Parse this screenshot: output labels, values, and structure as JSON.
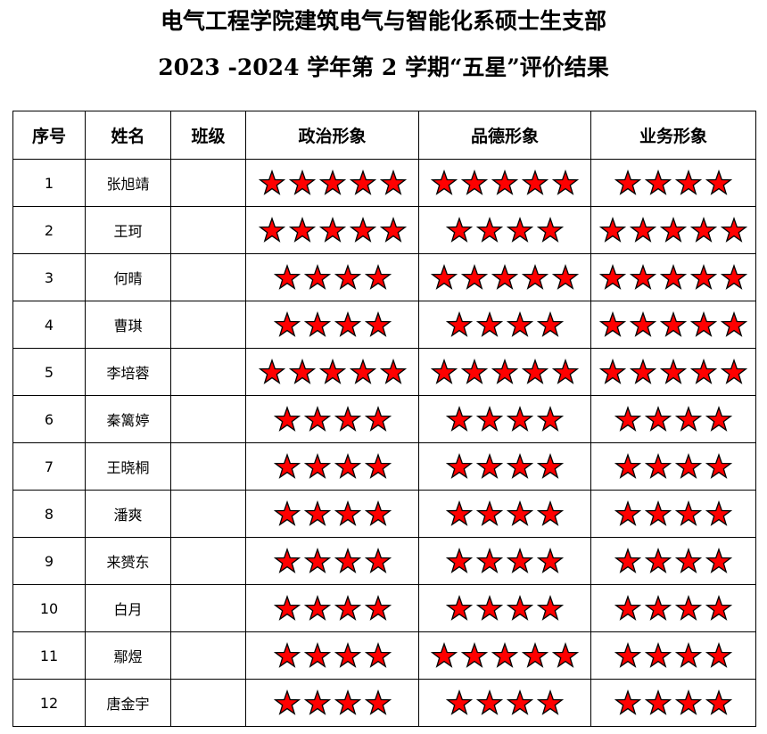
{
  "title_line1": "电气工程学院建筑电气与智能化系硕士生支部",
  "title_line2": "2023 -2024  学年第 2 学期“五星”评价结果",
  "headers": [
    "序号",
    "姓名",
    "班级",
    "政治形象",
    "品德形象",
    "业务形象"
  ],
  "star_color": "#ff0000",
  "rows": [
    {
      "no": "1",
      "name": "张旭靖",
      "class": "",
      "political": 5,
      "moral": 5,
      "work": 4
    },
    {
      "no": "2",
      "name": "王珂",
      "class": "",
      "political": 5,
      "moral": 4,
      "work": 5
    },
    {
      "no": "3",
      "name": "何晴",
      "class": "",
      "political": 4,
      "moral": 5,
      "work": 5
    },
    {
      "no": "4",
      "name": "曹琪",
      "class": "",
      "political": 4,
      "moral": 4,
      "work": 5
    },
    {
      "no": "5",
      "name": "李培蓉",
      "class": "",
      "political": 5,
      "moral": 5,
      "work": 5
    },
    {
      "no": "6",
      "name": "秦篱婷",
      "class": "",
      "political": 4,
      "moral": 4,
      "work": 4
    },
    {
      "no": "7",
      "name": "王晓桐",
      "class": "",
      "political": 4,
      "moral": 4,
      "work": 4
    },
    {
      "no": "8",
      "name": "潘爽",
      "class": "",
      "political": 4,
      "moral": 4,
      "work": 4
    },
    {
      "no": "9",
      "name": "来赟东",
      "class": "",
      "political": 4,
      "moral": 4,
      "work": 4
    },
    {
      "no": "10",
      "name": "白月",
      "class": "",
      "political": 4,
      "moral": 4,
      "work": 4
    },
    {
      "no": "11",
      "name": "鄢煜",
      "class": "",
      "political": 4,
      "moral": 5,
      "work": 4
    },
    {
      "no": "12",
      "name": "唐金宇",
      "class": "",
      "political": 4,
      "moral": 4,
      "work": 4
    }
  ]
}
